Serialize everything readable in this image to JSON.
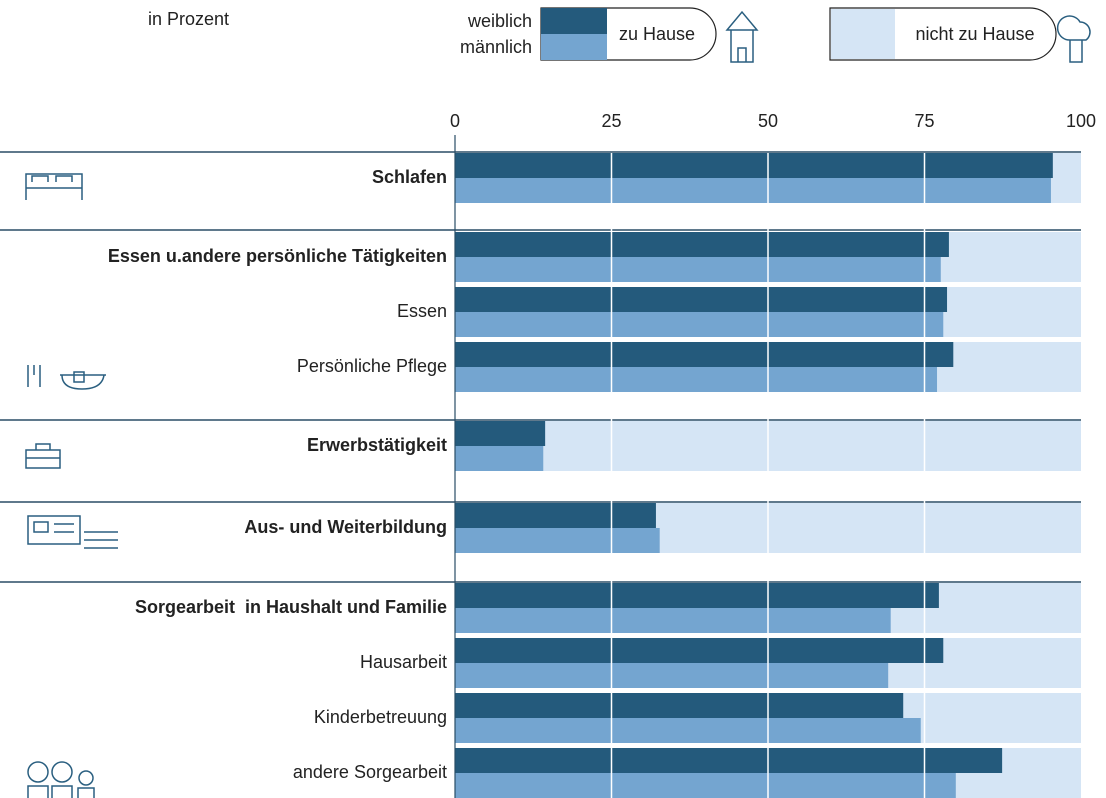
{
  "chart_data": {
    "type": "bar",
    "orientation": "horizontal",
    "unit_label": "in Prozent",
    "legend_home": "zu Hause",
    "legend_away": "nicht zu Hause",
    "track_color": "#d5e5f5",
    "categories": [
      "Schlafen",
      "Essen u.andere persönliche Tätigkeiten",
      "Essen",
      "Persönliche Pflege",
      "Erwerbstätigkeit",
      "Aus- und Weiterbildung",
      "Sorgearbeit  in Haushalt und Familie",
      "Hausarbeit",
      "Kinderbetreuung",
      "andere Sorgearbeit"
    ],
    "series": [
      {
        "name": "weiblich",
        "color": "#245a7c",
        "values": [
          95.5,
          78.9,
          78.6,
          79.6,
          14.4,
          32.1,
          77.3,
          78.0,
          71.6,
          87.4
        ]
      },
      {
        "name": "männlich",
        "color": "#74a5d0",
        "values": [
          95.2,
          77.6,
          78.0,
          77.0,
          14.1,
          32.7,
          69.6,
          69.2,
          74.4,
          80.0
        ]
      }
    ],
    "xlim": [
      0,
      100
    ],
    "xticks": [
      0,
      25,
      50,
      75,
      100
    ],
    "grid": true
  }
}
